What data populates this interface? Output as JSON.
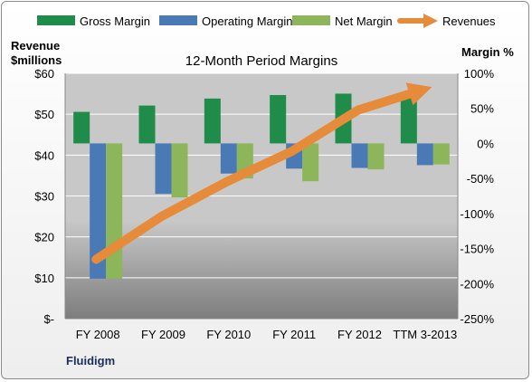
{
  "chart_data": {
    "type": "bar",
    "title": "12-Month Period Margins",
    "company": "Fluidigm",
    "categories": [
      "FY 2008",
      "FY 2009",
      "FY 2010",
      "FY 2011",
      "FY 2012",
      "TTM 3-2013"
    ],
    "left_axis": {
      "label_line1": "Revenue",
      "label_line2": "$millions",
      "range": [
        0,
        60
      ],
      "ticks": [
        {
          "value": 60,
          "label": "$60"
        },
        {
          "value": 50,
          "label": "$50"
        },
        {
          "value": 40,
          "label": "$40"
        },
        {
          "value": 30,
          "label": "$30"
        },
        {
          "value": 20,
          "label": "$20"
        },
        {
          "value": 10,
          "label": "$10"
        },
        {
          "value": 0,
          "label": "$-"
        }
      ]
    },
    "right_axis": {
      "label": "Margin %",
      "range": [
        -250,
        100
      ],
      "ticks": [
        {
          "value": 100,
          "label": "100%"
        },
        {
          "value": 50,
          "label": "50%"
        },
        {
          "value": 0,
          "label": "0%"
        },
        {
          "value": -50,
          "label": "-50%"
        },
        {
          "value": -100,
          "label": "-100%"
        },
        {
          "value": -150,
          "label": "-150%"
        },
        {
          "value": -200,
          "label": "-200%"
        },
        {
          "value": -250,
          "label": "-250%"
        }
      ]
    },
    "series": [
      {
        "name": "Gross Margin",
        "axis": "right",
        "kind": "bar",
        "color": "#1f8c4a",
        "values": [
          45,
          54,
          64,
          69,
          71,
          69
        ]
      },
      {
        "name": "Operating Margin",
        "axis": "right",
        "kind": "bar",
        "color": "#4a7ab5",
        "values": [
          -193,
          -72,
          -43,
          -36,
          -35,
          -31
        ]
      },
      {
        "name": "Net Margin",
        "axis": "right",
        "kind": "bar",
        "color": "#8db55a",
        "values": [
          -193,
          -77,
          -50,
          -54,
          -37,
          -30
        ]
      },
      {
        "name": "Revenues",
        "axis": "left",
        "kind": "line",
        "color": "#e58b3a",
        "values": [
          14.5,
          25,
          33.5,
          41,
          51,
          56
        ]
      }
    ],
    "grid": true,
    "legend_position": "top"
  }
}
